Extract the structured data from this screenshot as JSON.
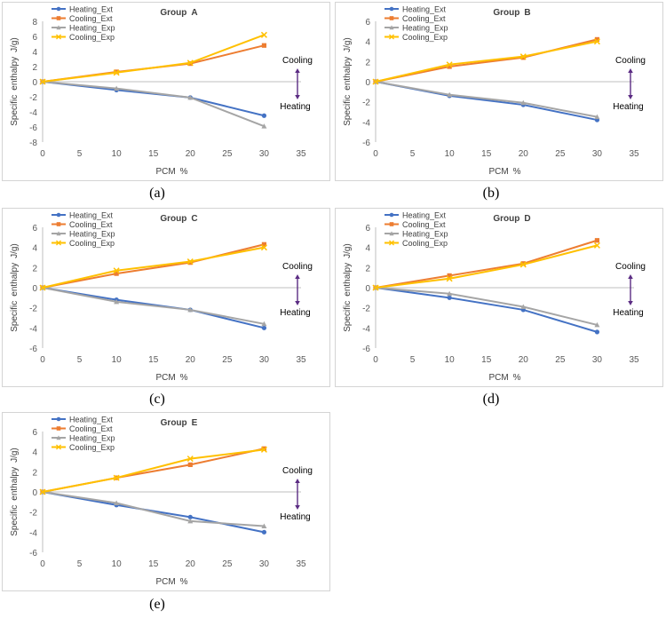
{
  "chart_data": [
    {
      "type": "line",
      "title": "Group A",
      "caption": "(a)",
      "xlabel": "PCM %",
      "ylabel": "Specific enthalpy J/g)",
      "xlim": [
        0,
        35
      ],
      "ylim": [
        -8,
        8
      ],
      "xticks": [
        0,
        5,
        10,
        15,
        20,
        25,
        30,
        35
      ],
      "yticks": [
        -8,
        -6,
        -4,
        -2,
        0,
        2,
        4,
        6,
        8
      ],
      "annotation_top": "Cooling",
      "annotation_bottom": "Heating ",
      "legend_position": "top-left",
      "x": [
        0,
        10,
        20,
        30
      ],
      "series": [
        {
          "name": "Heating_Ext",
          "color": "#4472c4",
          "marker": "circle",
          "values": [
            0,
            -1.1,
            -2.1,
            -4.5
          ]
        },
        {
          "name": "Cooling_Ext",
          "color": "#ed7d31",
          "marker": "square",
          "values": [
            0,
            1.3,
            2.4,
            4.8
          ]
        },
        {
          "name": "Heating_Exp",
          "color": "#a5a5a5",
          "marker": "triangle",
          "values": [
            0,
            -0.9,
            -2.1,
            -5.9
          ]
        },
        {
          "name": "Cooling_Exp",
          "color": "#ffc000",
          "marker": "x",
          "values": [
            0,
            1.2,
            2.5,
            6.2
          ]
        }
      ]
    },
    {
      "type": "line",
      "title": "Group B",
      "caption": "(b)",
      "xlabel": "PCM %",
      "ylabel": "Specific enthalpy J/g)",
      "xlim": [
        0,
        35
      ],
      "ylim": [
        -6,
        6
      ],
      "xticks": [
        0,
        5,
        10,
        15,
        20,
        25,
        30,
        35
      ],
      "yticks": [
        -6,
        -4,
        -2,
        0,
        2,
        4,
        6
      ],
      "annotation_top": "Cooling",
      "annotation_bottom": "Heating ",
      "legend_position": "top-left",
      "x": [
        0,
        10,
        20,
        30
      ],
      "series": [
        {
          "name": "Heating_Ext",
          "color": "#4472c4",
          "marker": "circle",
          "values": [
            0,
            -1.4,
            -2.3,
            -3.8
          ]
        },
        {
          "name": "Cooling_Ext",
          "color": "#ed7d31",
          "marker": "square",
          "values": [
            0,
            1.5,
            2.4,
            4.2
          ]
        },
        {
          "name": "Heating_Exp",
          "color": "#a5a5a5",
          "marker": "triangle",
          "values": [
            0,
            -1.3,
            -2.1,
            -3.5
          ]
        },
        {
          "name": "Cooling_Exp",
          "color": "#ffc000",
          "marker": "x",
          "values": [
            0,
            1.7,
            2.5,
            4.0
          ]
        }
      ]
    },
    {
      "type": "line",
      "title": "Group C",
      "caption": "(c)",
      "xlabel": "PCM %",
      "ylabel": "Specific enthalpy J/g)",
      "xlim": [
        0,
        35
      ],
      "ylim": [
        -6,
        6
      ],
      "xticks": [
        0,
        5,
        10,
        15,
        20,
        25,
        30,
        35
      ],
      "yticks": [
        -6,
        -4,
        -2,
        0,
        2,
        4,
        6
      ],
      "annotation_top": "Cooling",
      "annotation_bottom": "Heating ",
      "legend_position": "top-left",
      "x": [
        0,
        10,
        20,
        30
      ],
      "series": [
        {
          "name": "Heating_Ext",
          "color": "#4472c4",
          "marker": "circle",
          "values": [
            0,
            -1.2,
            -2.2,
            -4.0
          ]
        },
        {
          "name": "Cooling_Ext",
          "color": "#ed7d31",
          "marker": "square",
          "values": [
            0,
            1.4,
            2.5,
            4.3
          ]
        },
        {
          "name": "Heating_Exp",
          "color": "#a5a5a5",
          "marker": "triangle",
          "values": [
            0,
            -1.4,
            -2.2,
            -3.6
          ]
        },
        {
          "name": "Cooling_Exp",
          "color": "#ffc000",
          "marker": "x",
          "values": [
            0,
            1.7,
            2.6,
            4.0
          ]
        }
      ]
    },
    {
      "type": "line",
      "title": "Group D",
      "caption": "(d)",
      "xlabel": "PCM %",
      "ylabel": "Specific enthalpy J/g)",
      "xlim": [
        0,
        35
      ],
      "ylim": [
        -6,
        6
      ],
      "xticks": [
        0,
        5,
        10,
        15,
        20,
        25,
        30,
        35
      ],
      "yticks": [
        -6,
        -4,
        -2,
        0,
        2,
        4,
        6
      ],
      "annotation_top": "Cooling",
      "annotation_bottom": "Heating ",
      "legend_position": "top-left",
      "x": [
        0,
        10,
        20,
        30
      ],
      "series": [
        {
          "name": "Heating_Ext",
          "color": "#4472c4",
          "marker": "circle",
          "values": [
            0,
            -1.0,
            -2.2,
            -4.4
          ]
        },
        {
          "name": "Cooling_Ext",
          "color": "#ed7d31",
          "marker": "square",
          "values": [
            0,
            1.2,
            2.4,
            4.7
          ]
        },
        {
          "name": "Heating_Exp",
          "color": "#a5a5a5",
          "marker": "triangle",
          "values": [
            0,
            -0.6,
            -1.9,
            -3.7
          ]
        },
        {
          "name": "Cooling_Exp",
          "color": "#ffc000",
          "marker": "x",
          "values": [
            0,
            0.9,
            2.3,
            4.2
          ]
        }
      ]
    },
    {
      "type": "line",
      "title": "Group E",
      "caption": "(e)",
      "xlabel": "PCM %",
      "ylabel": "Specific enthalpy J/g)",
      "xlim": [
        0,
        35
      ],
      "ylim": [
        -6,
        6
      ],
      "xticks": [
        0,
        5,
        10,
        15,
        20,
        25,
        30,
        35
      ],
      "yticks": [
        -6,
        -4,
        -2,
        0,
        2,
        4,
        6
      ],
      "annotation_top": "Cooling",
      "annotation_bottom": "Heating ",
      "legend_position": "top-left",
      "x": [
        0,
        10,
        20,
        30
      ],
      "series": [
        {
          "name": "Heating_Ext",
          "color": "#4472c4",
          "marker": "circle",
          "values": [
            0,
            -1.3,
            -2.5,
            -4.0
          ]
        },
        {
          "name": "Cooling_Ext",
          "color": "#ed7d31",
          "marker": "square",
          "values": [
            0,
            1.4,
            2.7,
            4.3
          ]
        },
        {
          "name": "Heating_Exp",
          "color": "#a5a5a5",
          "marker": "triangle",
          "values": [
            0,
            -1.1,
            -2.9,
            -3.4
          ]
        },
        {
          "name": "Cooling_Exp",
          "color": "#ffc000",
          "marker": "x",
          "values": [
            0,
            1.4,
            3.3,
            4.2
          ]
        }
      ]
    }
  ]
}
